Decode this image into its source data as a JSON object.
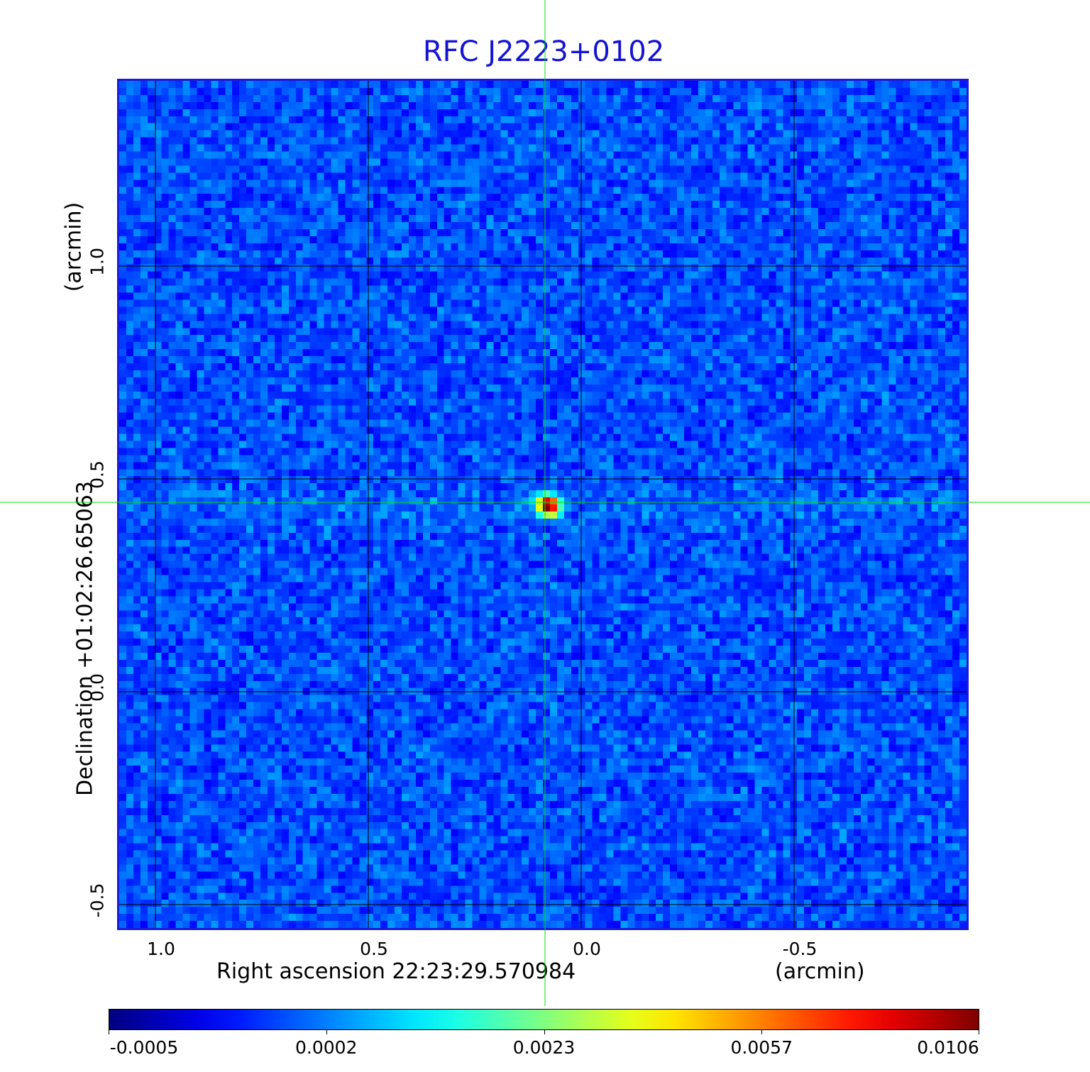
{
  "chart_data": {
    "type": "heatmap",
    "title": "RFC J2223+0102",
    "xlabel": "Right ascension  22:23:29.570984",
    "x_unit": "(arcmin)",
    "ylabel": "Declination  +01:02:26.65063",
    "y_unit": "(arcmin)",
    "x_ticks": [
      "1.0",
      "0.5",
      "0.0",
      "-0.5"
    ],
    "x_tick_values": [
      1.0,
      0.5,
      0.0,
      -0.5
    ],
    "y_ticks": [
      "1.0",
      "0.5",
      "0.0",
      "-0.5"
    ],
    "y_tick_values": [
      1.0,
      0.5,
      0.0,
      -0.5
    ],
    "xlim": [
      1.09,
      -0.91
    ],
    "ylim": [
      -0.56,
      1.44
    ],
    "grid": true,
    "crosshair": {
      "x": 0.085,
      "y": 0.445,
      "color": "#00e000"
    },
    "source": {
      "x": 0.085,
      "y": 0.445,
      "peak": 0.0106
    },
    "colorbar": {
      "colormap": "jet",
      "ticks": [
        "-0.0005",
        "0.0002",
        "0.0023",
        "0.0057",
        "0.0106"
      ],
      "tick_fractions": [
        0.0,
        0.25,
        0.5,
        0.75,
        1.0
      ]
    }
  }
}
